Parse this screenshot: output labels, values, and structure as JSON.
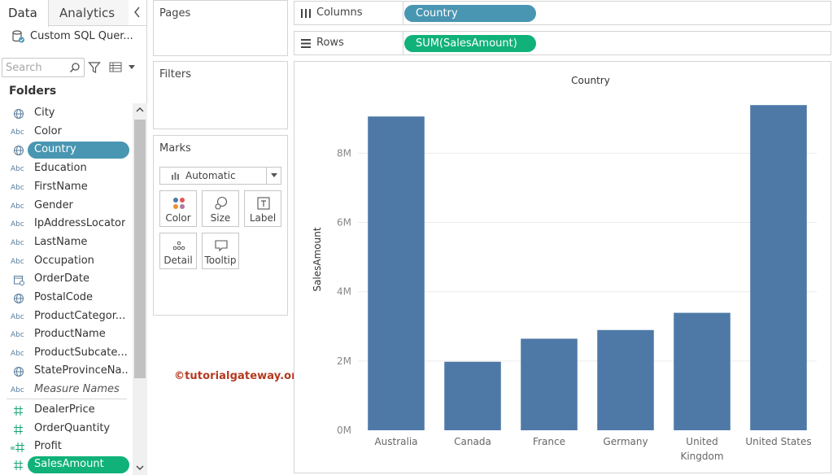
{
  "left_pane": {
    "tabs": [
      {
        "label": "Data",
        "active": true
      },
      {
        "label": "Analytics",
        "active": false
      }
    ],
    "datasource": "Custom SQL Quer...",
    "search": {
      "placeholder": "Search",
      "value": ""
    },
    "folders_label": "Folders",
    "dimensions": [
      {
        "name": "City",
        "icon": "globe-icon"
      },
      {
        "name": "Color",
        "icon": "abc-icon"
      },
      {
        "name": "Country",
        "icon": "globe-icon",
        "selected": true
      },
      {
        "name": "Education",
        "icon": "abc-icon"
      },
      {
        "name": "FirstName",
        "icon": "abc-icon"
      },
      {
        "name": "Gender",
        "icon": "abc-icon"
      },
      {
        "name": "IpAddressLocator",
        "icon": "abc-icon"
      },
      {
        "name": "LastName",
        "icon": "abc-icon"
      },
      {
        "name": "Occupation",
        "icon": "abc-icon"
      },
      {
        "name": "OrderDate",
        "icon": "calendar-icon"
      },
      {
        "name": "PostalCode",
        "icon": "globe-icon"
      },
      {
        "name": "ProductCategor...",
        "icon": "abc-icon"
      },
      {
        "name": "ProductName",
        "icon": "abc-icon"
      },
      {
        "name": "ProductSubcate...",
        "icon": "abc-icon"
      },
      {
        "name": "StateProvinceNa...",
        "icon": "globe-icon"
      },
      {
        "name": "Measure Names",
        "icon": "abc-icon",
        "italic": true
      }
    ],
    "measures": [
      {
        "name": "DealerPrice",
        "icon": "hash-icon"
      },
      {
        "name": "OrderQuantity",
        "icon": "hash-icon"
      },
      {
        "name": "Profit",
        "icon": "calc-hash-icon"
      },
      {
        "name": "SalesAmount",
        "icon": "hash-icon",
        "selected": true
      }
    ],
    "abc_text": "Abc"
  },
  "cards": {
    "pages": "Pages",
    "filters": "Filters",
    "marks": {
      "title": "Marks",
      "mark_type": "Automatic",
      "buttons": [
        "Color",
        "Size",
        "Label",
        "Detail",
        "Tooltip"
      ]
    }
  },
  "shelves": {
    "columns": {
      "label": "Columns",
      "pill": "Country"
    },
    "rows": {
      "label": "Rows",
      "pill": "SUM(SalesAmount)"
    }
  },
  "watermark": "©tutorialgateway.org",
  "colors": {
    "bar": "#4e79a7",
    "dimension_pill": "#4996b2",
    "measure_pill": "#10b27a",
    "watermark": "#b5391e"
  },
  "chart_data": {
    "type": "bar",
    "title": "Country",
    "ylabel": "SalesAmount",
    "categories": [
      "Australia",
      "Canada",
      "France",
      "Germany",
      "United Kingdom",
      "United States"
    ],
    "category_lines": [
      [
        "Australia"
      ],
      [
        "Canada"
      ],
      [
        "France"
      ],
      [
        "Germany"
      ],
      [
        "United",
        "Kingdom"
      ],
      [
        "United States"
      ]
    ],
    "values": [
      9061000,
      1977845,
      2644018,
      2894312,
      3391712,
      9389790
    ],
    "yticks": [
      0,
      2000000,
      4000000,
      6000000,
      8000000
    ],
    "ytick_labels": [
      "0M",
      "2M",
      "4M",
      "6M",
      "8M"
    ],
    "ylim": [
      0,
      9700000
    ],
    "grid": true
  }
}
